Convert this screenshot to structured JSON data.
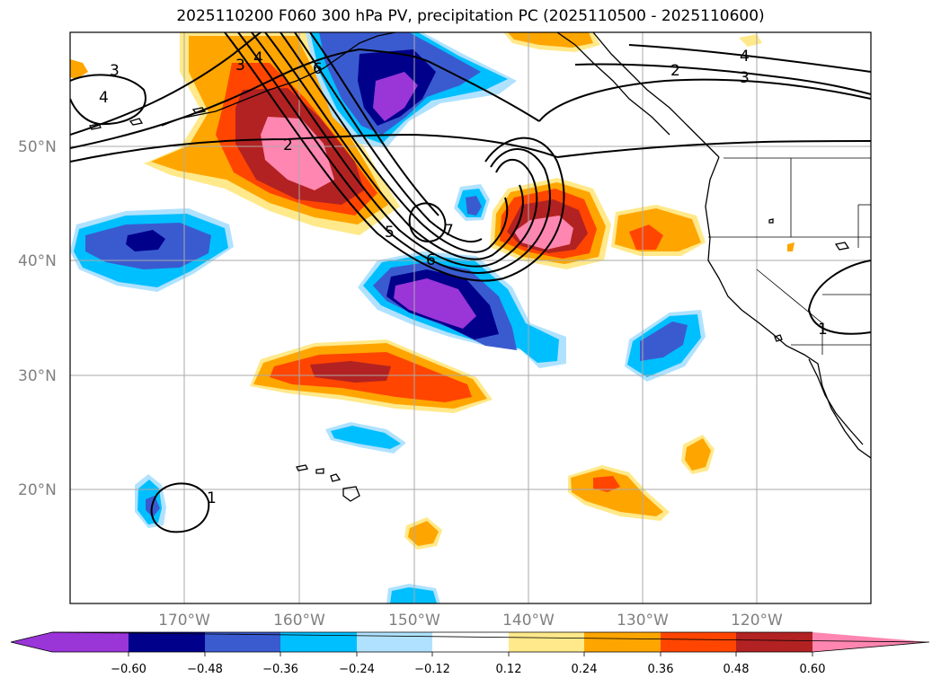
{
  "title": "2025110200 F060 300 hPa PV, precipitation PC (2025110500 - 2025110600)",
  "map": {
    "lon_labels": [
      "170°W",
      "160°W",
      "150°W",
      "140°W",
      "130°W",
      "120°W"
    ],
    "lat_labels": [
      "50°N",
      "40°N",
      "30°N",
      "20°N"
    ],
    "contour_labels": [
      "3",
      "4",
      "3",
      "4",
      "6",
      "2",
      "5",
      "7",
      "6",
      "2",
      "4",
      "3",
      "1",
      "1"
    ]
  },
  "colorbar": {
    "ticks": [
      "−0.60",
      "−0.48",
      "−0.36",
      "−0.24",
      "−0.12",
      "0.12",
      "0.24",
      "0.36",
      "0.48",
      "0.60"
    ],
    "colors": [
      "#9a35d8",
      "#00008b",
      "#3a5bd0",
      "#00bfff",
      "#b0e2ff",
      "#ffffff",
      "#ffe98a",
      "#ffa500",
      "#ff4500",
      "#b22222",
      "#ff86b0"
    ]
  },
  "colors": {
    "neg_strong": "#9a35d8",
    "neg_dark": "#00008b",
    "neg_mid": "#3a5bd0",
    "neg_light": "#00bfff",
    "neg_pale": "#b0e2ff",
    "pos_pale": "#ffe98a",
    "pos_light": "#ffa500",
    "pos_mid": "#ff4500",
    "pos_dark": "#b22222",
    "pos_strong": "#ff86b0"
  }
}
